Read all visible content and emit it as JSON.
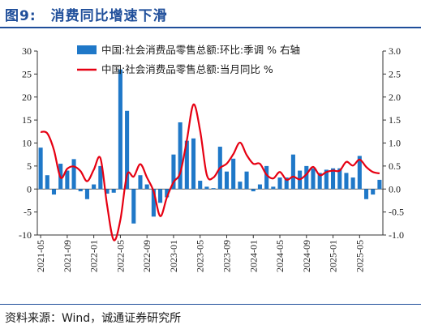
{
  "figure": {
    "number": "图9:",
    "title": "消费同比增速下滑"
  },
  "source": "资料来源：Wind，诚通证券研究所",
  "colors": {
    "bar": "#1f78c8",
    "line": "#e60012",
    "title": "#1f4e9a"
  },
  "chart_data": {
    "type": "bar+line",
    "legend_placement": "top",
    "grid": false,
    "x": [
      "2021-05",
      "2021-06",
      "2021-07",
      "2021-08",
      "2021-09",
      "2021-10",
      "2021-11",
      "2021-12",
      "2022-01",
      "2022-02",
      "2022-03",
      "2022-04",
      "2022-05",
      "2022-06",
      "2022-07",
      "2022-08",
      "2022-09",
      "2022-10",
      "2022-11",
      "2022-12",
      "2023-01",
      "2023-02",
      "2023-03",
      "2023-04",
      "2023-05",
      "2023-06",
      "2023-07",
      "2023-08",
      "2023-09",
      "2023-10",
      "2023-11",
      "2023-12",
      "2024-01",
      "2024-02",
      "2024-03",
      "2024-04",
      "2024-05",
      "2024-06",
      "2024-07",
      "2024-08",
      "2024-09",
      "2024-10",
      "2024-11",
      "2024-12",
      "2025-01",
      "2025-02",
      "2025-03",
      "2025-04",
      "2025-05",
      "2025-06",
      "2025-07",
      "2025-08"
    ],
    "x_tick_labels": [
      "2021-05",
      "2021-09",
      "2022-01",
      "2022-05",
      "2022-09",
      "2023-01",
      "2023-05",
      "2023-09",
      "2024-01",
      "2024-05",
      "2024-09",
      "2025-01",
      "2025-05"
    ],
    "y_left": {
      "lim": [
        -10,
        30
      ],
      "ticks": [
        -10,
        -5,
        0,
        5,
        10,
        15,
        20,
        25,
        30
      ]
    },
    "y_right": {
      "lim": [
        -1.0,
        3.0
      ],
      "ticks": [
        "-1.0",
        "-0.5",
        "0.0",
        "0.5",
        "1.0",
        "1.5",
        "2.0",
        "2.5",
        "3.0"
      ]
    },
    "series": [
      {
        "name": "中国:社会消费品零售总额:环比:季调 % 右轴",
        "type": "bar",
        "axis": "right",
        "values": [
          0.9,
          0.3,
          -0.12,
          0.55,
          0.4,
          0.65,
          -0.05,
          -0.22,
          0.1,
          0.5,
          -0.1,
          -0.08,
          2.6,
          1.7,
          -0.75,
          0.3,
          0.1,
          -0.6,
          -0.3,
          -0.18,
          0.75,
          1.45,
          1.05,
          1.1,
          0.18,
          0.05,
          0.02,
          0.92,
          0.38,
          0.66,
          0.16,
          0.38,
          -0.05,
          0.1,
          0.5,
          0.05,
          0.25,
          0.25,
          0.75,
          0.4,
          0.5,
          0.45,
          0.35,
          0.42,
          0.45,
          0.45,
          0.35,
          0.25,
          0.72,
          -0.22,
          -0.12,
          0.2
        ]
      },
      {
        "name": "中国:社会消费品零售总额:当月同比 %",
        "type": "line",
        "axis": "left",
        "values": [
          12.4,
          12.1,
          8.5,
          2.5,
          4.4,
          4.9,
          3.9,
          1.7,
          4.2,
          6.7,
          -3.5,
          -11.1,
          -6.7,
          3.1,
          2.7,
          5.4,
          2.5,
          -0.5,
          -5.9,
          -1.8,
          1.5,
          3.5,
          10.6,
          18.4,
          12.7,
          3.1,
          2.5,
          4.6,
          5.5,
          7.6,
          10.1,
          7.4,
          5.5,
          5.5,
          3.1,
          2.3,
          3.7,
          2.0,
          2.7,
          2.1,
          3.2,
          4.8,
          3.0,
          3.7,
          4.0,
          4.0,
          5.9,
          5.1,
          6.4,
          4.8,
          3.7,
          3.4
        ]
      }
    ]
  }
}
